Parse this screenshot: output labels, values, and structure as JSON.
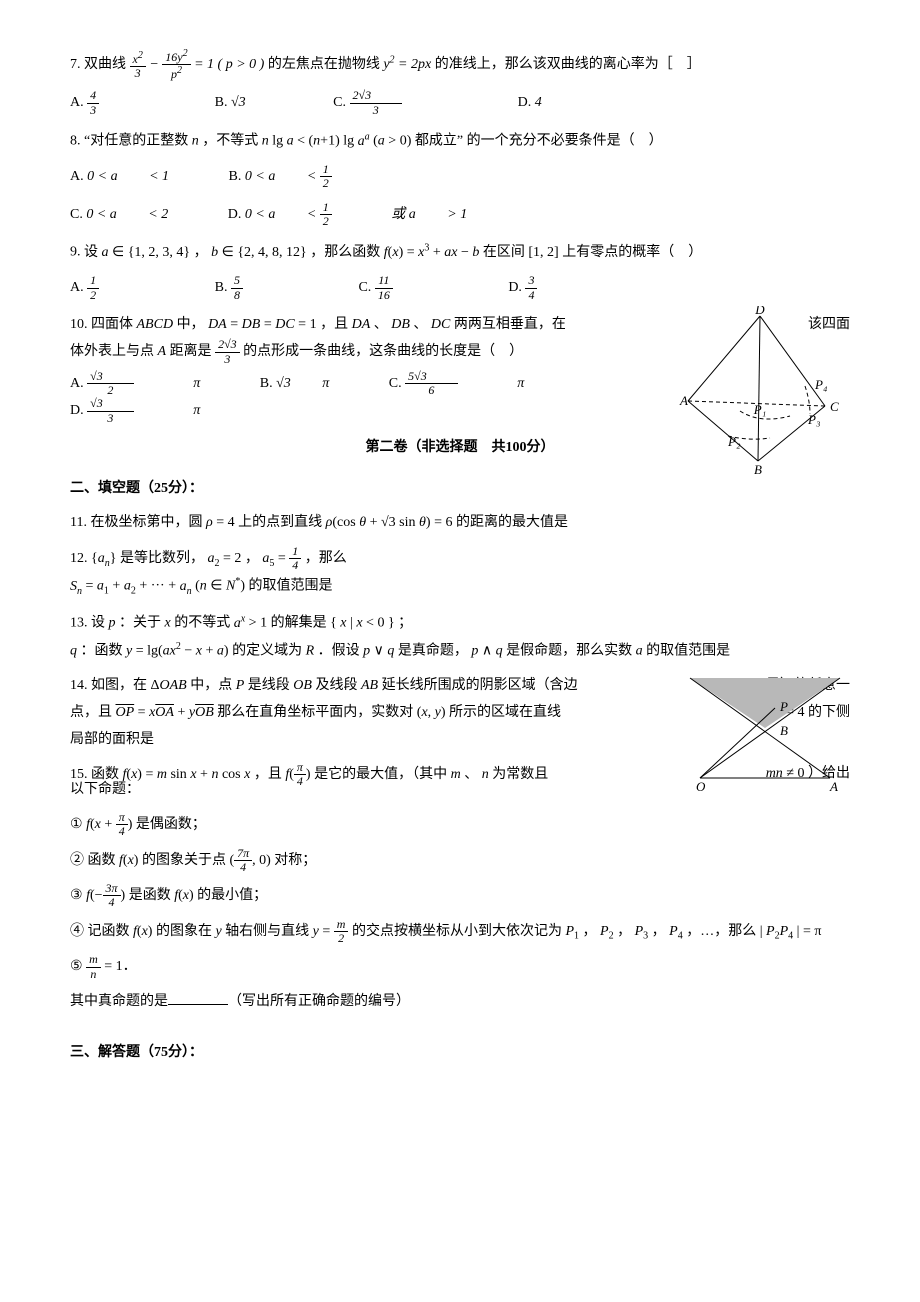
{
  "q7": {
    "num": "7.",
    "text_before": "双曲线 ",
    "expr_html": "<span class='frac'><span class='n'>x<sup>2</sup></span><span class='d'>3</span></span> − <span class='frac'><span class='n'>16y<sup>2</sup></span><span class='d'>p<sup>2</sup></span></span> = 1 ( p &gt; 0 )",
    "text_mid": " 的左焦点在抛物线 ",
    "expr2_html": "y<sup>2</sup> = 2px",
    "text_after": " 的准线上，那么该双曲线的离心率为［　］",
    "opts": {
      "A": "<span class='frac'><span class='n'>4</span><span class='d'>3</span></span>",
      "B": "<span class='sqrt'>√3</span>",
      "C": "<span class='frac'><span class='n'>2<span class='sqrt'>√3</span></span><span class='d'>3</span></span>",
      "D": "4"
    }
  },
  "q8": {
    "num": "8.",
    "text_html": "“对任意的正整数 <span class='math'>n</span> ，不等式 <span class='math'>n</span> lg <span class='math'>a</span> &lt; (<span class='math'>n</span>+1) lg <span class='math'>a<sup>a</sup></span> (<span class='math'>a</span> &gt; 0) 都成立” 的一个充分不必要条件是（　）",
    "opts": {
      "A": "0 &lt; <span class='math'>a</span> &lt; 1",
      "B": "0 &lt; <span class='math'>a</span> &lt; <span class='frac'><span class='n'>1</span><span class='d'>2</span></span>",
      "C": "0 &lt; <span class='math'>a</span> &lt; 2",
      "D": "0 &lt; <span class='math'>a</span> &lt; <span class='frac'><span class='n'>1</span><span class='d'>2</span></span> 或 <span class='math'>a</span> &gt; 1"
    }
  },
  "q9": {
    "num": "9.",
    "text_html": "设 <span class='math'>a</span> ∈ {1, 2, 3, 4} ， <span class='math'>b</span> ∈ {2, 4, 8, 12} ，那么函数 <span class='math'>f</span>(<span class='math'>x</span>) = <span class='math'>x</span><sup>3</sup> + <span class='math'>ax</span> − <span class='math'>b</span> 在区间 [1, 2] 上有零点的概率（　）",
    "opts": {
      "A": "<span class='frac'><span class='n'>1</span><span class='d'>2</span></span>",
      "B": "<span class='frac'><span class='n'>5</span><span class='d'>8</span></span>",
      "C": "<span class='frac'><span class='n'>11</span><span class='d'>16</span></span>",
      "D": "<span class='frac'><span class='n'>3</span><span class='d'>4</span></span>"
    }
  },
  "q10": {
    "num": "10.",
    "line1_html": "四面体 <span class='math'>ABCD</span> 中， <span class='math'>DA</span> = <span class='math'>DB</span> = <span class='math'>DC</span> = 1 ，且 <span class='math'>DA</span> 、 <span class='math'>DB</span> 、 <span class='math'>DC</span> 两两互相垂直，在",
    "line1_suffix": "该四面",
    "line2_html": "体外表上与点 <span class='math'>A</span> 距离是 <span class='frac'><span class='n'>2<span class='sqrt'>√3</span></span><span class='d'>3</span></span> 的点形成一条曲线，这条曲线的长度是（　）",
    "opts": {
      "A": "<span class='frac'><span class='n'><span class='sqrt'>√3</span></span><span class='d'>2</span></span> π",
      "B": "<span class='sqrt'>√3</span> π",
      "C": "<span class='frac'><span class='n'>5<span class='sqrt'>√3</span></span><span class='d'>6</span></span> π",
      "D": "<span class='frac'><span class='n'><span class='sqrt'>√3</span></span><span class='d'>3</span></span> π"
    },
    "diagram": {
      "labels": {
        "A": "A",
        "B": "B",
        "C": "C",
        "D": "D",
        "P1": "P₁",
        "P2": "P₂",
        "P3": "P₃",
        "P4": "P₄"
      },
      "line_color": "#000000",
      "dash": "4,3"
    }
  },
  "section2_title": "第二卷（非选择题　共100分）",
  "fill_header": "二、填空题（25分）：",
  "q11": {
    "num": "11.",
    "text_html": "在极坐标第中，圆 <span class='math'>ρ</span> = 4 上的点到直线 <span class='math'>ρ</span>(cos <span class='math'>θ</span> + <span class='sqrt'>√3</span> sin <span class='math'>θ</span>) = 6 的距离的最大值是"
  },
  "q12": {
    "num": "12.",
    "line1_html": "{<span class='math'>a<sub>n</sub></span>} 是等比数列， <span class='math'>a</span><sub>2</sub> = 2 ， <span class='math'>a</span><sub>5</sub> = <span class='frac'><span class='n'>1</span><span class='d'>4</span></span> ，那么",
    "line2_html": "<span class='math'>S<sub>n</sub></span> = <span class='math'>a</span><sub>1</sub> + <span class='math'>a</span><sub>2</sub> + ··· + <span class='math'>a<sub>n</sub></span> (<span class='math'>n</span> ∈ <span class='math'>N</span><sup>*</sup>) 的取值范围是"
  },
  "q13": {
    "num": "13.",
    "line1_html": "设 <span class='math'>p</span> ：关于 <span class='math'>x</span> 的不等式 <span class='math'>a<sup>x</sup></span> &gt; 1 的解集是 { <span class='math'>x</span> | <span class='math'>x</span> &lt; 0 } ；",
    "line2_html": "<span class='math'>q</span> ：函数 <span class='math'>y</span> = lg(<span class='math'>ax</span><sup>2</sup> − <span class='math'>x</span> + <span class='math'>a</span>) 的定义域为 <span class='math'>R</span> ．假设 <span class='math'>p</span> ∨ <span class='math'>q</span> 是真命题， <span class='math'>p</span> ∧ <span class='math'>q</span> 是假命题，那么实数 <span class='math'>a</span> 的取值范围是"
  },
  "q14": {
    "num": "14.",
    "line1_html": "如图，在 Δ<span class='math'>OAB</span> 中，点 <span class='math'>P</span> 是线段 <span class='math'>OB</span> 及线段 <span class='math'>AB</span> 延长线所围成的阴影区域（含边",
    "line1_suffix": "界）的任意一",
    "line2_html": "点，且 <span style='text-decoration:overline;font-style:italic;font-family:Times New Roman'>OP</span> = <span class='math'>x</span><span style='text-decoration:overline;font-style:italic;font-family:Times New Roman'>OA</span> + <span class='math'>y</span><span style='text-decoration:overline;font-style:italic;font-family:Times New Roman'>OB</span> 那么在直角坐标平面内，实数对 (<span class='math'>x</span>, <span class='math'>y</span>) 所示的区域在直线",
    "line2_suffix": "<span class='math'>y</span> = 4 的下侧",
    "line3": "局部的面积是",
    "diagram": {
      "labels": {
        "O": "O",
        "A": "A",
        "B": "B",
        "P": "P"
      },
      "fill": "#b8b8b8",
      "line_color": "#000000"
    }
  },
  "q15": {
    "num": "15.",
    "line1_html": "函数 <span class='math'>f</span>(<span class='math'>x</span>) = <span class='math'>m</span> sin <span class='math'>x</span> + <span class='math'>n</span> cos <span class='math'>x</span> ，且 <span class='math'>f</span>(<span class='frac'><span class='n'>π</span><span class='d'>4</span></span>) 是它的最大值，（其中 <span class='math'>m</span> 、 <span class='math'>n</span> 为常数且",
    "line1_suffix": "<span class='math'>mn</span> ≠ 0 ）给出",
    "line2": "以下命题：",
    "i1_html": "① <span class='math'>f</span>(<span class='math'>x</span> + <span class='frac'><span class='n'>π</span><span class='d'>4</span></span>) 是偶函数；",
    "i2_html": "② 函数 <span class='math'>f</span>(<span class='math'>x</span>) 的图象关于点 (<span class='frac'><span class='n'>7π</span><span class='d'>4</span></span>, 0) 对称；",
    "i3_html": "③ <span class='math'>f</span>(−<span class='frac'><span class='n'>3π</span><span class='d'>4</span></span>) 是函数 <span class='math'>f</span>(<span class='math'>x</span>) 的最小值；",
    "i4_html": "④ 记函数 <span class='math'>f</span>(<span class='math'>x</span>) 的图象在 <span class='math'>y</span> 轴右侧与直线 <span class='math'>y</span> = <span class='frac'><span class='n'>m</span><span class='d'>2</span></span> 的交点按横坐标从小到大依次记为 <span class='math'>P</span><sub>1</sub> ， <span class='math'>P</span><sub>2</sub> ， <span class='math'>P</span><sub>3</sub> ， <span class='math'>P</span><sub>4</sub> ，…，那么 | <span class='math'>P</span><sub>2</sub><span class='math'>P</span><sub>4</sub> | = π",
    "i5_html": "⑤ <span class='frac'><span class='n'>m</span><span class='d'>n</span></span> = 1．",
    "tail_before": "其中真命题的是",
    "tail_after": "（写出所有正确命题的编号）"
  },
  "answer_header": "三、解答题（75分）："
}
